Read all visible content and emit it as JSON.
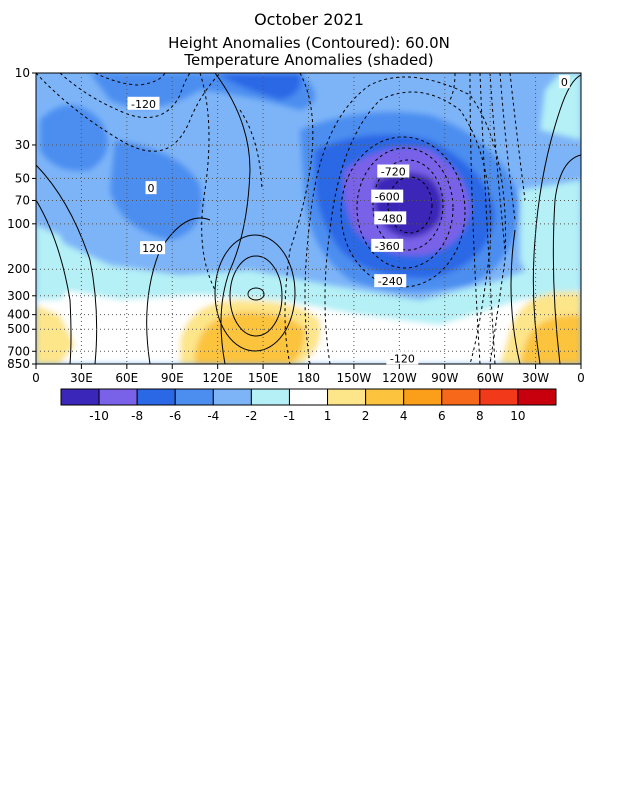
{
  "chart_data": {
    "type": "heatmap",
    "title": "October 2021",
    "subtitle_1": "Height Anomalies (Contoured): 60.0N",
    "subtitle_2": "Temperature Anomalies (shaded)",
    "x_axis": {
      "ticks": [
        "0",
        "30E",
        "60E",
        "90E",
        "120E",
        "150E",
        "180",
        "150W",
        "120W",
        "90W",
        "60W",
        "30W",
        "0"
      ],
      "range_deg_east": [
        0,
        360
      ]
    },
    "y_axis": {
      "scale": "log-pressure",
      "ticks": [
        "10",
        "30",
        "50",
        "70",
        "100",
        "200",
        "300",
        "400",
        "500",
        "700",
        "850"
      ],
      "range_hPa": [
        10,
        850
      ]
    },
    "grid": "dotted",
    "colorbar": {
      "labels": [
        "-10",
        "-8",
        "-6",
        "-4",
        "-2",
        "-1",
        "1",
        "2",
        "4",
        "6",
        "8",
        "10"
      ],
      "colors": [
        "#3a26b8",
        "#7a62e8",
        "#2a68e6",
        "#4b8ef0",
        "#7db4f8",
        "#b4f0f6",
        "#ffffff",
        "#fde58a",
        "#fcc33e",
        "#fb9e1a",
        "#f7681a",
        "#f2391a",
        "#c8000d"
      ]
    },
    "contour_labels": [
      {
        "text": "-120",
        "lon": 71,
        "p": 16
      },
      {
        "text": "0",
        "lon": 76,
        "p": 58
      },
      {
        "text": "120",
        "lon": 77,
        "p": 145
      },
      {
        "text": "-720",
        "lon": 236,
        "p": 45
      },
      {
        "text": "-600",
        "lon": 232,
        "p": 66
      },
      {
        "text": "-480",
        "lon": 234,
        "p": 92
      },
      {
        "text": "-360",
        "lon": 232,
        "p": 140
      },
      {
        "text": "-240",
        "lon": 234,
        "p": 240
      },
      {
        "text": "-120",
        "lon": 242,
        "p": 780
      },
      {
        "text": "0",
        "lon": 349,
        "p": 11.5
      }
    ]
  }
}
